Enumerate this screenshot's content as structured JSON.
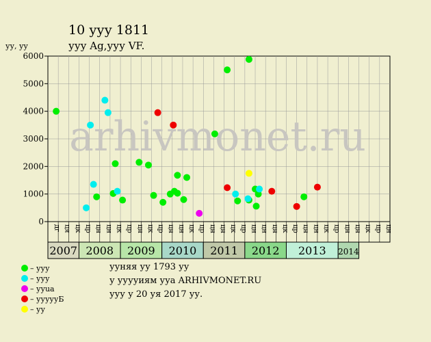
{
  "chart_data": {
    "type": "scatter",
    "title": "10 ууу 1811",
    "subtitle": "ууу Ag,ууу VF.",
    "ylabel": "уу, уу",
    "ylim": [
      0,
      6000
    ],
    "y_ticks": [
      "0",
      "1000",
      "2000",
      "3000",
      "4000",
      "5000",
      "6000"
    ],
    "grid": true,
    "watermark": "arhivmonet.ru",
    "months": [
      "дг",
      "ця",
      "цк",
      "цр",
      "цн",
      "цн",
      "цк",
      "цр",
      "цн",
      "цк",
      "цр",
      "цн",
      "цн",
      "цк",
      "цр",
      "цн",
      "цн",
      "цк",
      "цр",
      "цн",
      "цн",
      "цн",
      "цк",
      "цр",
      "цн",
      "цн",
      "цк",
      "цр",
      "цн",
      "цн",
      "цк",
      "цр",
      "цн"
    ],
    "years": [
      {
        "label": "2007",
        "start": 0,
        "end": 3,
        "color": "#d9d9c0"
      },
      {
        "label": "2008",
        "start": 3,
        "end": 7,
        "color": "#cce6b4"
      },
      {
        "label": "2009",
        "start": 7,
        "end": 11,
        "color": "#b7e6a8"
      },
      {
        "label": "2010",
        "start": 11,
        "end": 15,
        "color": "#a8d8c8"
      },
      {
        "label": "2011",
        "start": 15,
        "end": 19,
        "color": "#c0c8a8"
      },
      {
        "label": "2012",
        "start": 19,
        "end": 23,
        "color": "#8ad88a"
      },
      {
        "label": "2013",
        "start": 23,
        "end": 28,
        "color": "#c0f0d8"
      },
      {
        "label": "2014",
        "start": 28,
        "end": 30,
        "color": "#b0d8b0"
      }
    ],
    "series": [
      {
        "name": "– ууу",
        "color": "#00ee00",
        "points": [
          {
            "x": 0.3,
            "y": 4000
          },
          {
            "x": 4.2,
            "y": 900
          },
          {
            "x": 5.8,
            "y": 1020
          },
          {
            "x": 6.0,
            "y": 2100
          },
          {
            "x": 6.7,
            "y": 780
          },
          {
            "x": 8.3,
            "y": 2150
          },
          {
            "x": 9.2,
            "y": 2050
          },
          {
            "x": 9.7,
            "y": 950
          },
          {
            "x": 10.6,
            "y": 700
          },
          {
            "x": 11.3,
            "y": 1000
          },
          {
            "x": 11.7,
            "y": 1100
          },
          {
            "x": 12.0,
            "y": 1680
          },
          {
            "x": 12.0,
            "y": 1030
          },
          {
            "x": 12.6,
            "y": 800
          },
          {
            "x": 12.9,
            "y": 1600
          },
          {
            "x": 15.6,
            "y": 3180
          },
          {
            "x": 16.8,
            "y": 5500
          },
          {
            "x": 17.8,
            "y": 750
          },
          {
            "x": 18.9,
            "y": 5880
          },
          {
            "x": 18.9,
            "y": 780
          },
          {
            "x": 19.5,
            "y": 1180
          },
          {
            "x": 19.6,
            "y": 560
          },
          {
            "x": 19.8,
            "y": 1000
          },
          {
            "x": 24.2,
            "y": 900
          }
        ]
      },
      {
        "name": "– ууу",
        "color": "#00eeee",
        "points": [
          {
            "x": 3.2,
            "y": 500
          },
          {
            "x": 3.6,
            "y": 3500
          },
          {
            "x": 3.9,
            "y": 1350
          },
          {
            "x": 5.0,
            "y": 4400
          },
          {
            "x": 5.3,
            "y": 3950
          },
          {
            "x": 6.2,
            "y": 1100
          },
          {
            "x": 17.6,
            "y": 1000
          },
          {
            "x": 18.8,
            "y": 830
          },
          {
            "x": 19.9,
            "y": 1180
          }
        ]
      },
      {
        "name": "– ууua",
        "color": "#ee00ee",
        "points": [
          {
            "x": 14.1,
            "y": 300
          }
        ]
      },
      {
        "name": "– уууууБ",
        "color": "#ee0000",
        "points": [
          {
            "x": 10.1,
            "y": 3950
          },
          {
            "x": 11.6,
            "y": 3500
          },
          {
            "x": 16.8,
            "y": 1230
          },
          {
            "x": 21.1,
            "y": 1100
          },
          {
            "x": 23.5,
            "y": 550
          },
          {
            "x": 25.5,
            "y": 1250
          }
        ]
      },
      {
        "name": "– уу",
        "color": "#ffff00",
        "points": [
          {
            "x": 18.9,
            "y": 1750
          }
        ]
      }
    ]
  },
  "info": {
    "line1": "ууняя уу 1793 уу",
    "line2": "у ууууиям ууа ARHIVMONET.RU",
    "line3": "ууу у 20 уя 2017 уу."
  }
}
